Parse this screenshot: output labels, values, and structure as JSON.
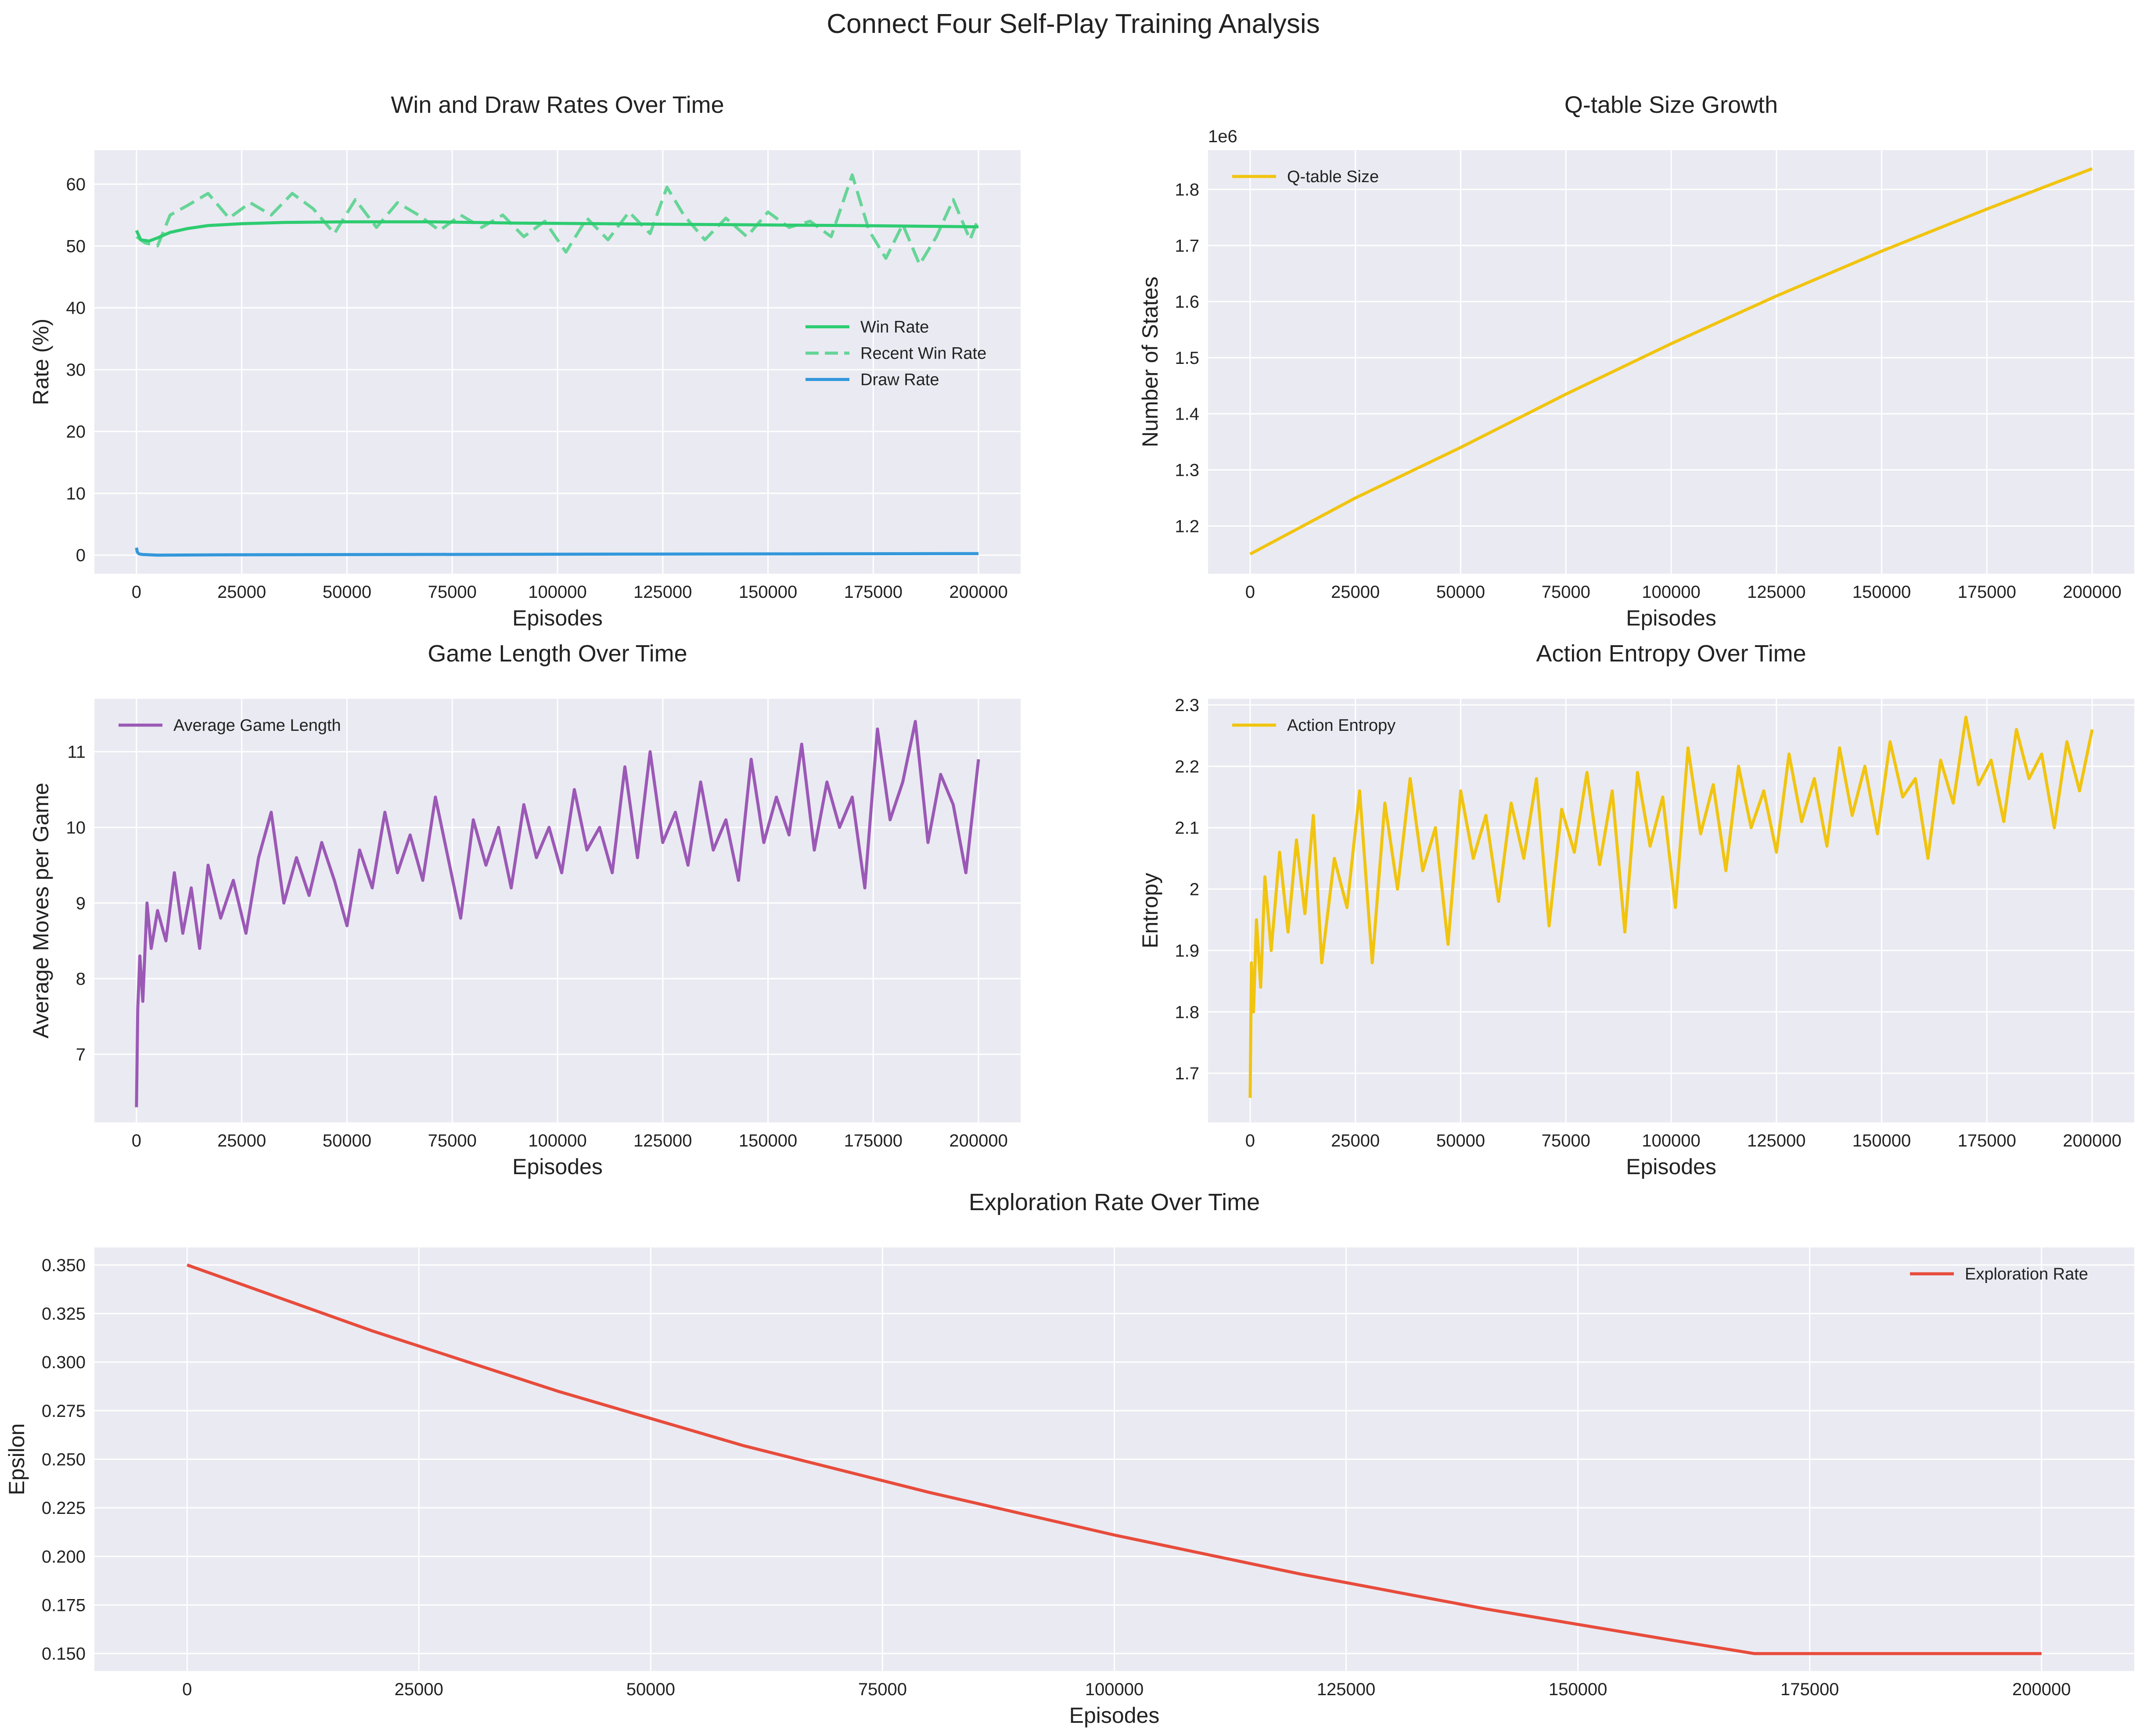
{
  "figure": {
    "title": "Connect Four Self-Play Training Analysis"
  },
  "colors": {
    "win": "#2ecc71",
    "recent_win": "#2ecc71",
    "draw": "#3498db",
    "qtable": "#f1c40f",
    "game_length": "#9b59b6",
    "entropy": "#f1c40f",
    "epsilon": "#e74c3c",
    "axes_bg": "#eaeaf2",
    "grid": "#ffffff"
  },
  "chart_data": [
    {
      "id": "win-draw",
      "type": "line",
      "title": "Win and Draw Rates Over Time",
      "xlabel": "Episodes",
      "ylabel": "Rate (%)",
      "xlim": [
        -10000,
        210000
      ],
      "ylim": [
        -3,
        65.5
      ],
      "xticks": [
        0,
        25000,
        50000,
        75000,
        100000,
        125000,
        150000,
        175000,
        200000
      ],
      "yticks": [
        0,
        10,
        20,
        30,
        40,
        50,
        60
      ],
      "grid": true,
      "legend": "center-right",
      "series": [
        {
          "name": "Win Rate",
          "style": "solid",
          "color_key": "win",
          "x": [
            0,
            1000,
            3000,
            5000,
            8000,
            12000,
            17000,
            25000,
            35000,
            50000,
            70000,
            90000,
            110000,
            130000,
            150000,
            170000,
            185000,
            200000
          ],
          "y": [
            52.5,
            51.0,
            50.8,
            51.3,
            52.2,
            52.8,
            53.3,
            53.6,
            53.8,
            53.9,
            53.9,
            53.7,
            53.6,
            53.5,
            53.4,
            53.3,
            53.2,
            53.1
          ]
        },
        {
          "name": "Recent Win Rate",
          "style": "dashed",
          "color_key": "recent_win",
          "x": [
            0,
            2000,
            5000,
            8000,
            12000,
            17000,
            22000,
            27000,
            32000,
            37000,
            42000,
            47000,
            52000,
            57000,
            62000,
            67000,
            72000,
            77000,
            82000,
            87000,
            92000,
            97000,
            102000,
            107000,
            112000,
            117000,
            122000,
            126000,
            130000,
            135000,
            140000,
            145000,
            150000,
            155000,
            160000,
            165000,
            170000,
            174000,
            178000,
            182000,
            186000,
            190000,
            194000,
            198000,
            200000
          ],
          "y": [
            51.5,
            50.5,
            50.0,
            55.0,
            56.5,
            58.5,
            54.5,
            57.0,
            55.0,
            58.5,
            56.0,
            52.0,
            57.5,
            53.0,
            57.0,
            55.0,
            52.5,
            55.0,
            53.0,
            55.0,
            51.5,
            54.0,
            49.0,
            54.5,
            51.0,
            55.5,
            52.0,
            59.5,
            55.0,
            51.0,
            54.5,
            51.5,
            55.5,
            53.0,
            54.0,
            51.5,
            61.5,
            52.5,
            48.0,
            53.5,
            47.0,
            51.5,
            57.5,
            51.0,
            54.5
          ]
        },
        {
          "name": "Draw Rate",
          "style": "solid",
          "color_key": "draw",
          "x": [
            0,
            200,
            600,
            1500,
            5000,
            20000,
            60000,
            100000,
            150000,
            200000
          ],
          "y": [
            1.2,
            0.5,
            0.2,
            0.1,
            0.0,
            0.05,
            0.1,
            0.15,
            0.2,
            0.25
          ]
        }
      ]
    },
    {
      "id": "qtable",
      "type": "line",
      "title": "Q-table Size Growth",
      "xlabel": "Episodes",
      "ylabel": "Number of States",
      "offset_text": "1e6",
      "y_scale": 1000000,
      "xlim": [
        -10000,
        210000
      ],
      "ylim": [
        1.115,
        1.87
      ],
      "xticks": [
        0,
        25000,
        50000,
        75000,
        100000,
        125000,
        150000,
        175000,
        200000
      ],
      "yticks": [
        1.2,
        1.3,
        1.4,
        1.5,
        1.6,
        1.7,
        1.8
      ],
      "grid": true,
      "legend": "top-left",
      "series": [
        {
          "name": "Q-table Size",
          "style": "solid",
          "color_key": "qtable",
          "x": [
            0,
            25000,
            50000,
            75000,
            100000,
            125000,
            150000,
            175000,
            200000
          ],
          "y": [
            1150000,
            1250000,
            1340000,
            1435000,
            1525000,
            1610000,
            1690000,
            1765000,
            1837000
          ]
        }
      ]
    },
    {
      "id": "game-length",
      "type": "line",
      "title": "Game Length Over Time",
      "xlabel": "Episodes",
      "ylabel": "Average Moves per Game",
      "xlim": [
        -10000,
        210000
      ],
      "ylim": [
        6.1,
        11.7
      ],
      "xticks": [
        0,
        25000,
        50000,
        75000,
        100000,
        125000,
        150000,
        175000,
        200000
      ],
      "yticks": [
        7,
        8,
        9,
        10,
        11
      ],
      "grid": true,
      "legend": "top-left",
      "series": [
        {
          "name": "Average Game Length",
          "style": "solid",
          "color_key": "game_length",
          "x": [
            0,
            300,
            800,
            1500,
            2500,
            3500,
            5000,
            7000,
            9000,
            11000,
            13000,
            15000,
            17000,
            20000,
            23000,
            26000,
            29000,
            32000,
            35000,
            38000,
            41000,
            44000,
            47000,
            50000,
            53000,
            56000,
            59000,
            62000,
            65000,
            68000,
            71000,
            74000,
            77000,
            80000,
            83000,
            86000,
            89000,
            92000,
            95000,
            98000,
            101000,
            104000,
            107000,
            110000,
            113000,
            116000,
            119000,
            122000,
            125000,
            128000,
            131000,
            134000,
            137000,
            140000,
            143000,
            146000,
            149000,
            152000,
            155000,
            158000,
            161000,
            164000,
            167000,
            170000,
            173000,
            176000,
            179000,
            182000,
            185000,
            188000,
            191000,
            194000,
            197000,
            200000
          ],
          "y": [
            6.3,
            7.6,
            8.3,
            7.7,
            9.0,
            8.4,
            8.9,
            8.5,
            9.4,
            8.6,
            9.2,
            8.4,
            9.5,
            8.8,
            9.3,
            8.6,
            9.6,
            10.2,
            9.0,
            9.6,
            9.1,
            9.8,
            9.3,
            8.7,
            9.7,
            9.2,
            10.2,
            9.4,
            9.9,
            9.3,
            10.4,
            9.6,
            8.8,
            10.1,
            9.5,
            10.0,
            9.2,
            10.3,
            9.6,
            10.0,
            9.4,
            10.5,
            9.7,
            10.0,
            9.4,
            10.8,
            9.6,
            11.0,
            9.8,
            10.2,
            9.5,
            10.6,
            9.7,
            10.1,
            9.3,
            10.9,
            9.8,
            10.4,
            9.9,
            11.1,
            9.7,
            10.6,
            10.0,
            10.4,
            9.2,
            11.3,
            10.1,
            10.6,
            11.4,
            9.8,
            10.7,
            10.3,
            9.4,
            10.9
          ]
        }
      ]
    },
    {
      "id": "entropy",
      "type": "line",
      "title": "Action Entropy Over Time",
      "xlabel": "Episodes",
      "ylabel": "Entropy",
      "xlim": [
        -10000,
        210000
      ],
      "ylim": [
        1.62,
        2.31
      ],
      "xticks": [
        0,
        25000,
        50000,
        75000,
        100000,
        125000,
        150000,
        175000,
        200000
      ],
      "yticks": [
        1.7,
        1.8,
        1.9,
        2.0,
        2.1,
        2.2,
        2.3
      ],
      "grid": true,
      "legend": "top-left",
      "series": [
        {
          "name": "Action Entropy",
          "style": "solid",
          "color_key": "entropy",
          "x": [
            0,
            300,
            800,
            1500,
            2500,
            3500,
            5000,
            7000,
            9000,
            11000,
            13000,
            15000,
            17000,
            20000,
            23000,
            26000,
            29000,
            32000,
            35000,
            38000,
            41000,
            44000,
            47000,
            50000,
            53000,
            56000,
            59000,
            62000,
            65000,
            68000,
            71000,
            74000,
            77000,
            80000,
            83000,
            86000,
            89000,
            92000,
            95000,
            98000,
            101000,
            104000,
            107000,
            110000,
            113000,
            116000,
            119000,
            122000,
            125000,
            128000,
            131000,
            134000,
            137000,
            140000,
            143000,
            146000,
            149000,
            152000,
            155000,
            158000,
            161000,
            164000,
            167000,
            170000,
            173000,
            176000,
            179000,
            182000,
            185000,
            188000,
            191000,
            194000,
            197000,
            200000
          ],
          "y": [
            1.66,
            1.88,
            1.8,
            1.95,
            1.84,
            2.02,
            1.9,
            2.06,
            1.93,
            2.08,
            1.96,
            2.12,
            1.88,
            2.05,
            1.97,
            2.16,
            1.88,
            2.14,
            2.0,
            2.18,
            2.03,
            2.1,
            1.91,
            2.16,
            2.05,
            2.12,
            1.98,
            2.14,
            2.05,
            2.18,
            1.94,
            2.13,
            2.06,
            2.19,
            2.04,
            2.16,
            1.93,
            2.19,
            2.07,
            2.15,
            1.97,
            2.23,
            2.09,
            2.17,
            2.03,
            2.2,
            2.1,
            2.16,
            2.06,
            2.22,
            2.11,
            2.18,
            2.07,
            2.23,
            2.12,
            2.2,
            2.09,
            2.24,
            2.15,
            2.18,
            2.05,
            2.21,
            2.14,
            2.28,
            2.17,
            2.21,
            2.11,
            2.26,
            2.18,
            2.22,
            2.1,
            2.24,
            2.16,
            2.26
          ]
        }
      ]
    },
    {
      "id": "exploration",
      "type": "line",
      "title": "Exploration Rate Over Time",
      "xlabel": "Episodes",
      "ylabel": "Epsilon",
      "xlim": [
        -10000,
        210000
      ],
      "ylim": [
        0.141,
        0.359
      ],
      "xticks": [
        0,
        25000,
        50000,
        75000,
        100000,
        125000,
        150000,
        175000,
        200000
      ],
      "yticks": [
        0.15,
        0.175,
        0.2,
        0.225,
        0.25,
        0.275,
        0.3,
        0.325,
        0.35
      ],
      "ytick_decimals": 3,
      "grid": true,
      "legend": "top-right",
      "series": [
        {
          "name": "Exploration Rate",
          "style": "solid",
          "color_key": "epsilon",
          "x": [
            0,
            20000,
            40000,
            60000,
            80000,
            100000,
            120000,
            140000,
            160000,
            169000,
            200000
          ],
          "y": [
            0.35,
            0.316,
            0.285,
            0.257,
            0.233,
            0.211,
            0.191,
            0.173,
            0.157,
            0.15,
            0.15
          ]
        }
      ]
    }
  ]
}
